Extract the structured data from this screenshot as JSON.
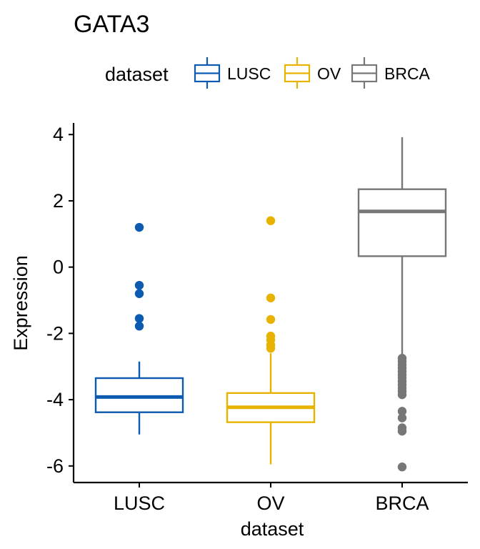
{
  "chart_data": {
    "type": "boxplot",
    "title": "GATA3",
    "xlabel": "dataset",
    "ylabel": "Expression",
    "ylim": [
      -6.5,
      4.35
    ],
    "yticks": [
      -6,
      -4,
      -2,
      0,
      2,
      4
    ],
    "ytick_labels": [
      "-6",
      "-4",
      "-2",
      "0",
      "2",
      "4"
    ],
    "grid": false,
    "legend": {
      "title": "dataset",
      "position": "top"
    },
    "categories": [
      "LUSC",
      "OV",
      "BRCA"
    ],
    "series": [
      {
        "name": "LUSC",
        "color": "#0C5BB0",
        "whisker_low": -5.05,
        "q1": -4.38,
        "median": -3.92,
        "q3": -3.35,
        "whisker_high": -2.85,
        "outliers": [
          1.2,
          -0.55,
          -0.8,
          -1.55,
          -1.78
        ]
      },
      {
        "name": "OV",
        "color": "#E8B300",
        "whisker_low": -5.95,
        "q1": -4.68,
        "median": -4.23,
        "q3": -3.8,
        "whisker_high": -2.6,
        "outliers": [
          1.4,
          -0.93,
          -1.58,
          -2.08,
          -2.2,
          -2.35,
          -2.45
        ]
      },
      {
        "name": "BRCA",
        "color": "#777777",
        "whisker_low": -2.7,
        "q1": 0.33,
        "median": 1.68,
        "q3": 2.35,
        "whisker_high": 3.92,
        "outliers": [
          -2.75,
          -2.85,
          -2.95,
          -3.05,
          -3.15,
          -3.25,
          -3.35,
          -3.45,
          -3.55,
          -3.65,
          -3.75,
          -3.85,
          -4.35,
          -4.55,
          -4.85,
          -4.95,
          -6.03
        ]
      }
    ]
  }
}
